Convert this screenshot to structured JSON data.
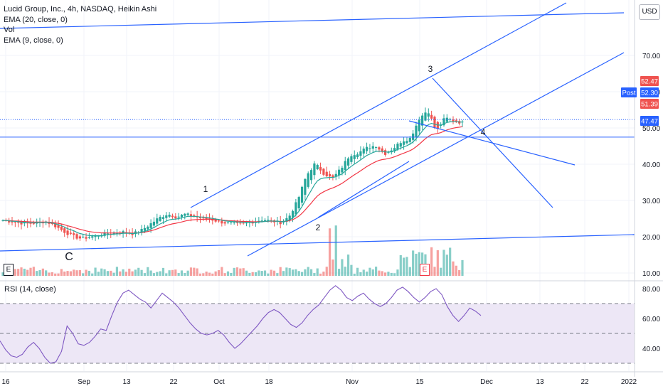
{
  "header": {
    "title": "Lucid Group, Inc., 4h, NASDAQ, Heikin Ashi",
    "indicators": [
      "EMA (20, close, 0)",
      "Vol",
      "EMA (9, close, 0)"
    ],
    "rsi_label": "RSI (14, close)",
    "currency": "USD"
  },
  "colors": {
    "bull": "#26a69a",
    "bear": "#ef5350",
    "ema20": "#f23645",
    "ema9": "#26a69a",
    "trend": "#2962ff",
    "rsi": "#7e57c2",
    "rsi_band": "#ede7f6"
  },
  "chart_data": [
    {
      "type": "candlestick",
      "title": "Lucid Group, Inc., 4h, NASDAQ, Heikin Ashi",
      "y_ticks": [
        10,
        20,
        30,
        40,
        50,
        60,
        70
      ],
      "y_tick_labels": [
        "10.00",
        "20.00",
        "30.00",
        "40.00",
        "50.00",
        "60.00",
        "70.00"
      ],
      "x_tick_labels": [
        "16",
        "Sep",
        "13",
        "22",
        "Oct",
        "18",
        "Nov",
        "15",
        "Dec",
        "13",
        "22",
        "2022"
      ],
      "price_tags": [
        {
          "label": "52.47",
          "value": 52.47,
          "color": "#ef5350"
        },
        {
          "label": "Post",
          "value": 52.3,
          "color": "#2962ff"
        },
        {
          "label": "52.30",
          "value": 52.3,
          "color": "#2962ff"
        },
        {
          "label": "51.39",
          "value": 51.39,
          "color": "#ef5350"
        },
        {
          "label": "47.47",
          "value": 47.47,
          "color": "#2962ff"
        }
      ],
      "wave_labels": [
        "C",
        "1",
        "2",
        "3",
        "4"
      ],
      "earnings_markers": [
        "E",
        "E"
      ],
      "ohlc_path": [
        24.5,
        24.2,
        23.8,
        23.6,
        23.9,
        24.2,
        23.0,
        21.5,
        20.2,
        19.5,
        19.9,
        20.4,
        20.9,
        21.2,
        21.3,
        20.8,
        21.8,
        23.5,
        25.2,
        26.3,
        25.4,
        26.2,
        25.6,
        25.0,
        24.8,
        24.1,
        23.7,
        23.4,
        23.7,
        24.2,
        24.8,
        24.3,
        23.9,
        25.5,
        30.0,
        36.8,
        40.2,
        37.5,
        36.0,
        38.8,
        42.5,
        43.2,
        44.5,
        45.2,
        42.8,
        44.3,
        46.4,
        47.2,
        52.5,
        55.0,
        49.0,
        52.8,
        52.0,
        51.4
      ]
    },
    {
      "type": "line",
      "title": "RSI (14, close)",
      "y_ticks": [
        40,
        60,
        80
      ],
      "y_tick_labels": [
        "40.00",
        "60.00",
        "80.00"
      ],
      "band": [
        30,
        70
      ],
      "midline": 50,
      "values": [
        45,
        39,
        35,
        34,
        36,
        41,
        44,
        40,
        34,
        30,
        31,
        38,
        55,
        50,
        43,
        42,
        44,
        48,
        53,
        52,
        62,
        71,
        77,
        79,
        76,
        73,
        71,
        67,
        72,
        77,
        74,
        71,
        67,
        62,
        57,
        53,
        50,
        49,
        50,
        52,
        49,
        44,
        40,
        43,
        47,
        51,
        55,
        60,
        64,
        66,
        64,
        60,
        56,
        54,
        57,
        62,
        66,
        69,
        74,
        79,
        82,
        79,
        74,
        72,
        75,
        77,
        73,
        70,
        68,
        70,
        74,
        79,
        81,
        78,
        74,
        71,
        74,
        78,
        80,
        76,
        68,
        62,
        58,
        62,
        67,
        65,
        62
      ]
    }
  ]
}
